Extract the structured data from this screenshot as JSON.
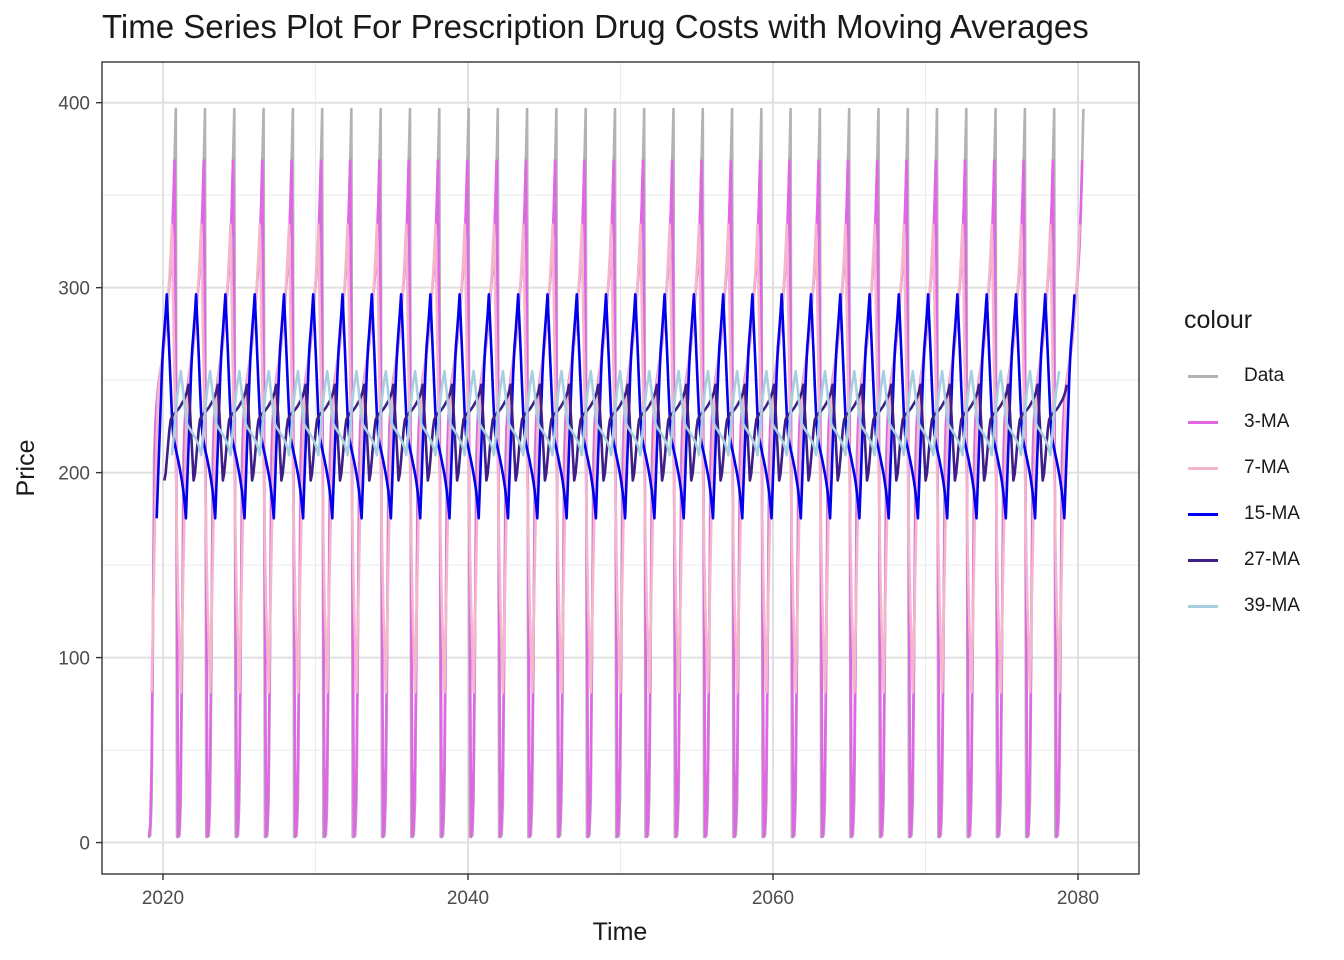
{
  "chart_data": {
    "type": "line",
    "title": "Time Series Plot For Prescription Drug Costs with Moving Averages",
    "xlabel": "Time",
    "ylabel": "Price",
    "xlim": [
      2016,
      2084
    ],
    "ylim": [
      -17,
      422
    ],
    "x_ticks": [
      2020,
      2040,
      2060,
      2080
    ],
    "y_ticks": [
      0,
      100,
      200,
      300,
      400
    ],
    "grid": true,
    "legend_title": "colour",
    "legend_position": "right",
    "start_year": 2019,
    "cycle_years": 1.92,
    "n_cycles": 32,
    "data_cycle_profile": [
      [
        0.0,
        3
      ],
      [
        0.06,
        3
      ],
      [
        0.12,
        5
      ],
      [
        0.17,
        90
      ],
      [
        0.22,
        215
      ],
      [
        0.3,
        238
      ],
      [
        0.4,
        252
      ],
      [
        0.5,
        262
      ],
      [
        0.58,
        272
      ],
      [
        0.65,
        285
      ],
      [
        0.72,
        300
      ],
      [
        0.79,
        312
      ],
      [
        0.85,
        330
      ],
      [
        0.9,
        360
      ],
      [
        0.94,
        385
      ],
      [
        0.97,
        406
      ],
      [
        0.99,
        240
      ],
      [
        1.0,
        3
      ]
    ],
    "series": [
      {
        "name": "Data",
        "color": "#b3b3b3",
        "source": "data"
      },
      {
        "name": "3-MA",
        "color": "#e066e6",
        "window": 3
      },
      {
        "name": "7-MA",
        "color": "#f4b6cc",
        "window": 7
      },
      {
        "name": "15-MA",
        "color": "#0000ee",
        "window": 15
      },
      {
        "name": "27-MA",
        "color": "#3f1f86",
        "window": 27
      },
      {
        "name": "39-MA",
        "color": "#a7cfe0",
        "window": 39
      }
    ]
  }
}
